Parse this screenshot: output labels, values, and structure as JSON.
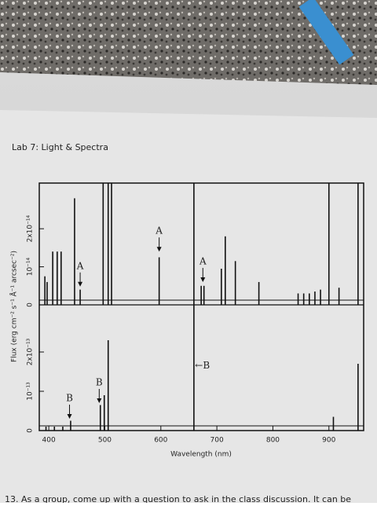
{
  "page": {
    "header": "Lab 7: Light & Spectra",
    "footer": "13. As a group, come up with a question to ask in the class discussion. It can be"
  },
  "chart_data": [
    {
      "type": "stem",
      "ylabel": "Flux (erg cm⁻² s⁻¹ Å⁻¹ arcsec⁻²)",
      "xlim": [
        383,
        962
      ],
      "ylim": [
        0,
        3.2e-14
      ],
      "yticks": [
        0,
        {
          "value": 1e-14,
          "label": "10⁻¹⁴"
        },
        {
          "value": 2e-14,
          "label": "2x10⁻¹⁴"
        }
      ],
      "x": [
        393,
        397,
        407,
        415,
        422,
        446,
        456,
        497,
        506,
        512,
        597,
        659,
        672,
        677,
        708,
        715,
        733,
        775,
        845,
        855,
        865,
        875,
        885,
        900,
        918,
        952
      ],
      "values": [
        7.5e-15,
        6e-15,
        1.4e-14,
        1.4e-14,
        1.4e-14,
        2.8e-14,
        4e-15,
        3.2e-14,
        3.2e-14,
        3.2e-14,
        1.25e-14,
        3.2e-14,
        5e-15,
        5e-15,
        9.5e-15,
        1.8e-14,
        1.15e-14,
        6e-15,
        3e-15,
        3e-15,
        3e-15,
        3.5e-15,
        4e-15,
        3.2e-14,
        4.5e-15,
        3.2e-14
      ],
      "annotations": [
        {
          "text": "A",
          "x": 456,
          "y": 4.8e-15,
          "arrow": "down"
        },
        {
          "text": "A",
          "x": 597,
          "y": 1.4e-14,
          "arrow": "down"
        },
        {
          "text": "A",
          "x": 675,
          "y": 6e-15,
          "arrow": "down"
        }
      ]
    },
    {
      "type": "stem",
      "xlabel": "Wavelength (nm)",
      "xlim": [
        383,
        962
      ],
      "ylim": [
        0,
        3.2e-13
      ],
      "xticks": [
        400,
        500,
        600,
        700,
        800,
        900
      ],
      "yticks": [
        0,
        {
          "value": 1e-13,
          "label": "10⁻¹³"
        },
        {
          "value": 2e-13,
          "label": "2x10⁻¹³"
        }
      ],
      "x": [
        395,
        410,
        425,
        439,
        492,
        499,
        506,
        659,
        908,
        952
      ],
      "values": [
        1e-14,
        1e-14,
        1e-14,
        2.5e-14,
        6.5e-14,
        9e-14,
        2.3e-13,
        3.2e-13,
        3.5e-14,
        1.7e-13
      ],
      "annotations": [
        {
          "text": "B",
          "x": 437,
          "y": 3e-14,
          "arrow": "down"
        },
        {
          "text": "B",
          "x": 490,
          "y": 7e-14,
          "arrow": "down"
        },
        {
          "text": "←B",
          "x": 661,
          "y": 1.65e-13,
          "arrow": "none"
        }
      ]
    }
  ]
}
